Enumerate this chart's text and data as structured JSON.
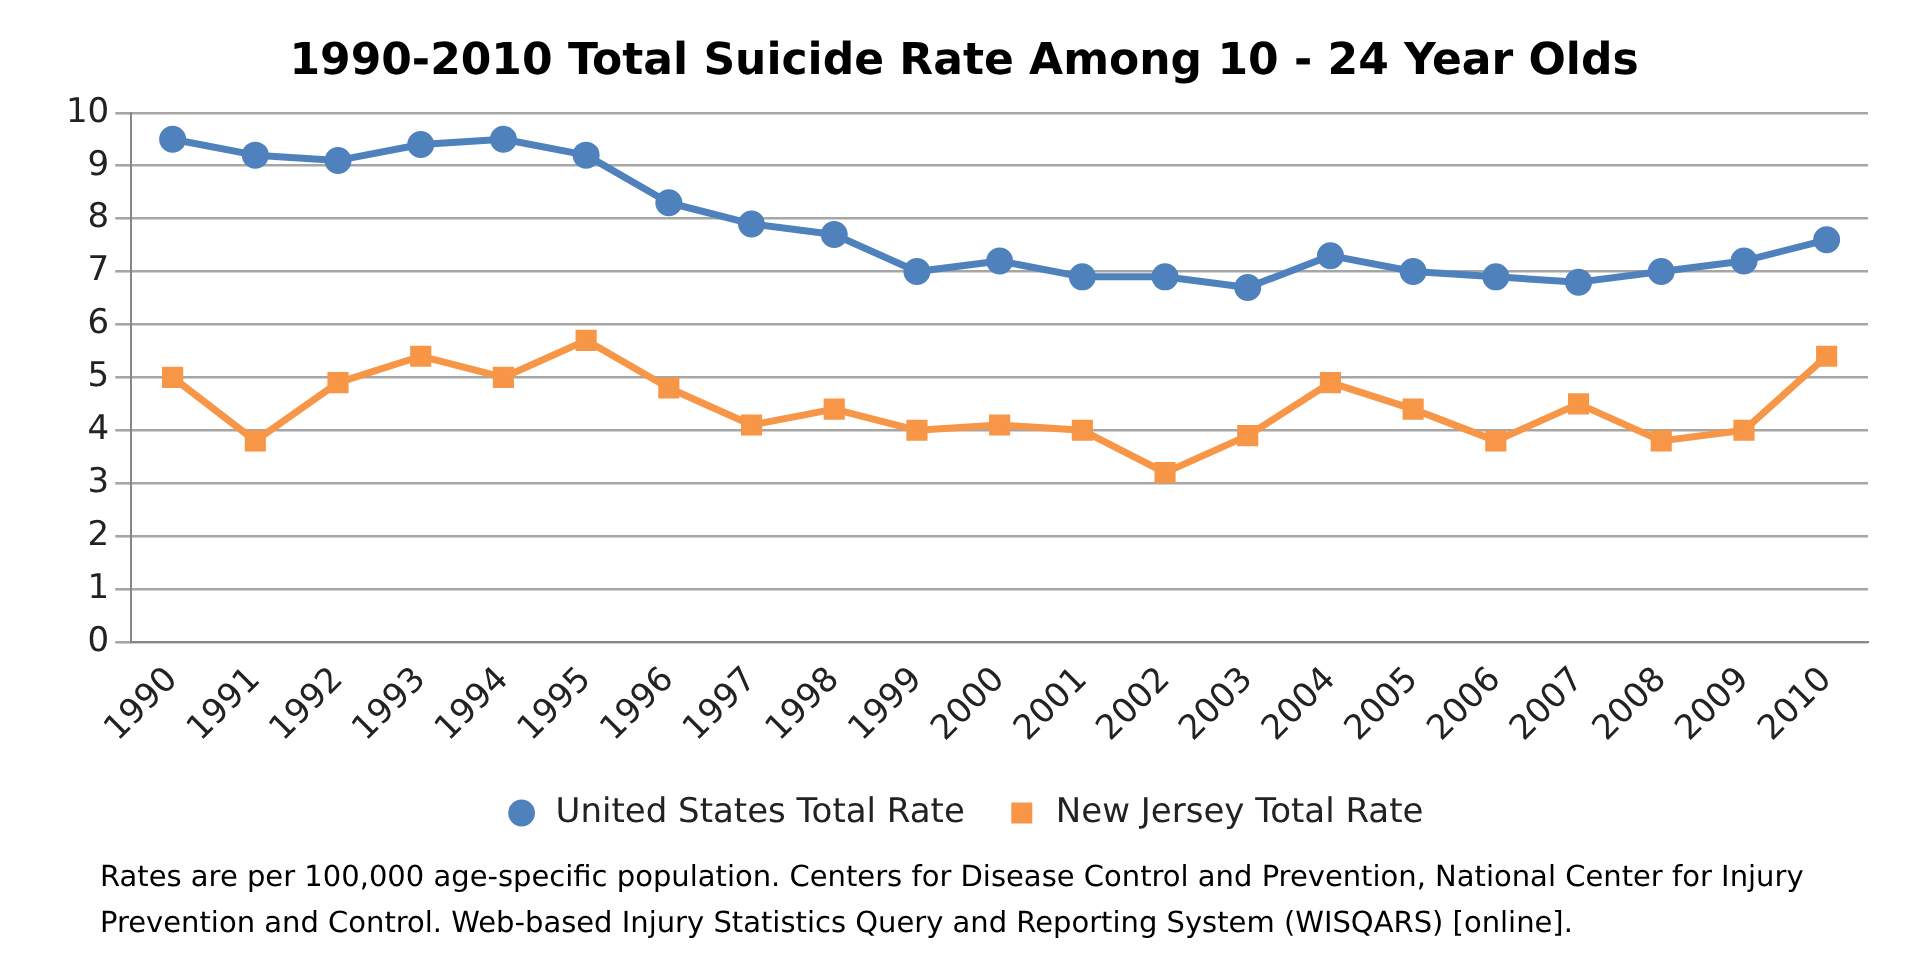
{
  "chart_data": {
    "type": "line",
    "title": "1990-2010 Total Suicide Rate Among 10 - 24 Year Olds",
    "categories": [
      "1990",
      "1991",
      "1992",
      "1993",
      "1994",
      "1995",
      "1996",
      "1997",
      "1998",
      "1999",
      "2000",
      "2001",
      "2002",
      "2003",
      "2004",
      "2005",
      "2006",
      "2007",
      "2008",
      "2009",
      "2010"
    ],
    "series": [
      {
        "name": "United States Total Rate",
        "color": "#4f81bd",
        "marker": "circle",
        "values": [
          9.5,
          9.2,
          9.1,
          9.4,
          9.5,
          9.2,
          8.3,
          7.9,
          7.7,
          7.0,
          7.2,
          6.9,
          6.9,
          6.7,
          7.3,
          7.0,
          6.9,
          6.8,
          7.0,
          7.2,
          7.6
        ]
      },
      {
        "name": "New Jersey Total Rate",
        "color": "#f79646",
        "marker": "square",
        "values": [
          5.0,
          3.8,
          4.9,
          5.4,
          5.0,
          5.7,
          4.8,
          4.1,
          4.4,
          4.0,
          4.1,
          4.0,
          3.2,
          3.9,
          4.9,
          4.4,
          3.8,
          4.5,
          3.8,
          4.0,
          5.4
        ]
      }
    ],
    "ylim": [
      0,
      10
    ],
    "yticks": [
      0,
      1,
      2,
      3,
      4,
      5,
      6,
      7,
      8,
      9,
      10
    ],
    "grid": "y",
    "legend": "bottom",
    "line_style": "solid",
    "annotations": [
      "Rates are per 100,000 age-specific population. Centers for Disease Control and Prevention, National Center for Injury Prevention and Control. Web-based Injury Statistics Query and Reporting System (WISQARS) [online]."
    ]
  }
}
